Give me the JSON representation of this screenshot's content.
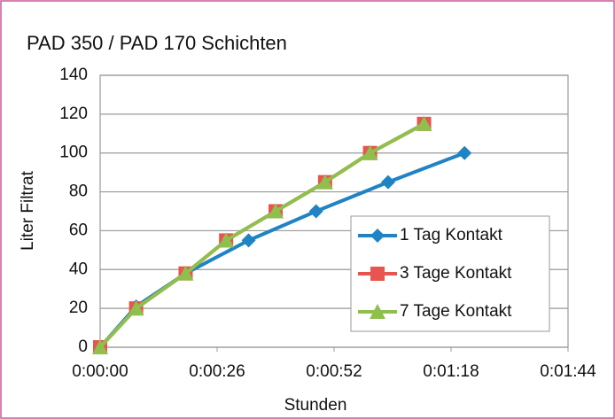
{
  "chart_data": {
    "type": "line",
    "title": "PAD 350 / PAD 170 Schichten",
    "xlabel": "Stunden",
    "ylabel": "Liter Filtrat",
    "xlim": [
      0,
      104
    ],
    "ylim": [
      0,
      140
    ],
    "xticks": [
      {
        "value": 0,
        "label": "0:00:00"
      },
      {
        "value": 26,
        "label": "0:00:26"
      },
      {
        "value": 52,
        "label": "0:00:52"
      },
      {
        "value": 78,
        "label": "0:01:18"
      },
      {
        "value": 104,
        "label": "0:01:44"
      }
    ],
    "yticks": [
      0,
      20,
      40,
      60,
      80,
      100,
      120,
      140
    ],
    "grid": true,
    "legend": "lower-right",
    "series": [
      {
        "name": "1 Tag Kontakt",
        "color": "#1f83c4",
        "marker": "diamond",
        "x": [
          0,
          8,
          19,
          33,
          48,
          64,
          81
        ],
        "values": [
          0,
          21,
          38,
          55,
          70,
          85,
          100
        ]
      },
      {
        "name": "3 Tage Kontakt",
        "color": "#e8554e",
        "marker": "square",
        "x": [
          0,
          8,
          19,
          28,
          39,
          50,
          60,
          72
        ],
        "values": [
          0,
          20,
          38,
          55,
          70,
          85,
          100,
          115
        ]
      },
      {
        "name": "7 Tage Kontakt",
        "color": "#8fbf4d",
        "marker": "triangle",
        "x": [
          0,
          8,
          19,
          28,
          39,
          50,
          60,
          72
        ],
        "values": [
          0,
          20,
          38,
          55,
          70,
          85,
          100,
          115
        ]
      }
    ]
  }
}
